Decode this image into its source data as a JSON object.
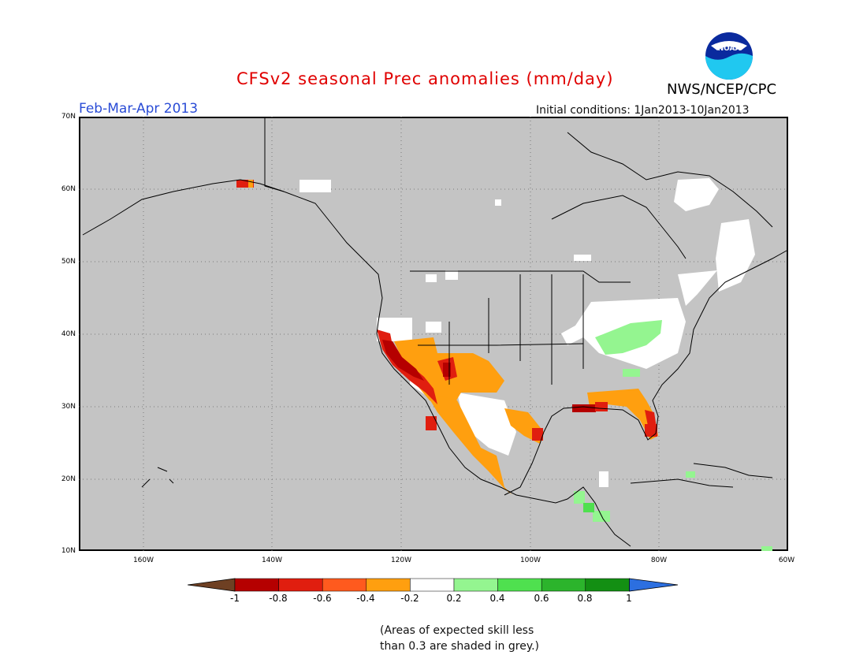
{
  "header": {
    "title": "CFSv2 seasonal Prec anomalies (mm/day)",
    "period": "Feb-Mar-Apr 2013",
    "initial_conditions": "Initial conditions: 1Jan2013-10Jan2013",
    "agency": "NWS/NCEP/CPC",
    "logo_text": "NOAA",
    "title_color": "#e00000",
    "period_color": "#2a4cd6"
  },
  "map": {
    "background_color": "#c4c4c4",
    "lat_labels": [
      "70N",
      "60N",
      "50N",
      "40N",
      "30N",
      "20N",
      "10N"
    ],
    "lon_labels": [
      "160W",
      "140W",
      "120W",
      "100W",
      "80W",
      "60W"
    ],
    "gridlines": "dotted",
    "lat_range": [
      10,
      70
    ],
    "lon_range": [
      -170,
      -60
    ]
  },
  "colorbar": {
    "labels": [
      "-1",
      "-0.8",
      "-0.6",
      "-0.4",
      "-0.2",
      "0.2",
      "0.4",
      "0.6",
      "0.8",
      "1"
    ],
    "colors": [
      "#6e4023",
      "#b50000",
      "#e01e0f",
      "#ff5a1e",
      "#ff9f0f",
      "#ffffff",
      "#94f590",
      "#4fe04f",
      "#2cb42c",
      "#138f13",
      "#2c6fe0"
    ]
  },
  "footnote": {
    "line1": "(Areas of expected skill less",
    "line2": "than 0.3 are shaded in grey.)"
  }
}
